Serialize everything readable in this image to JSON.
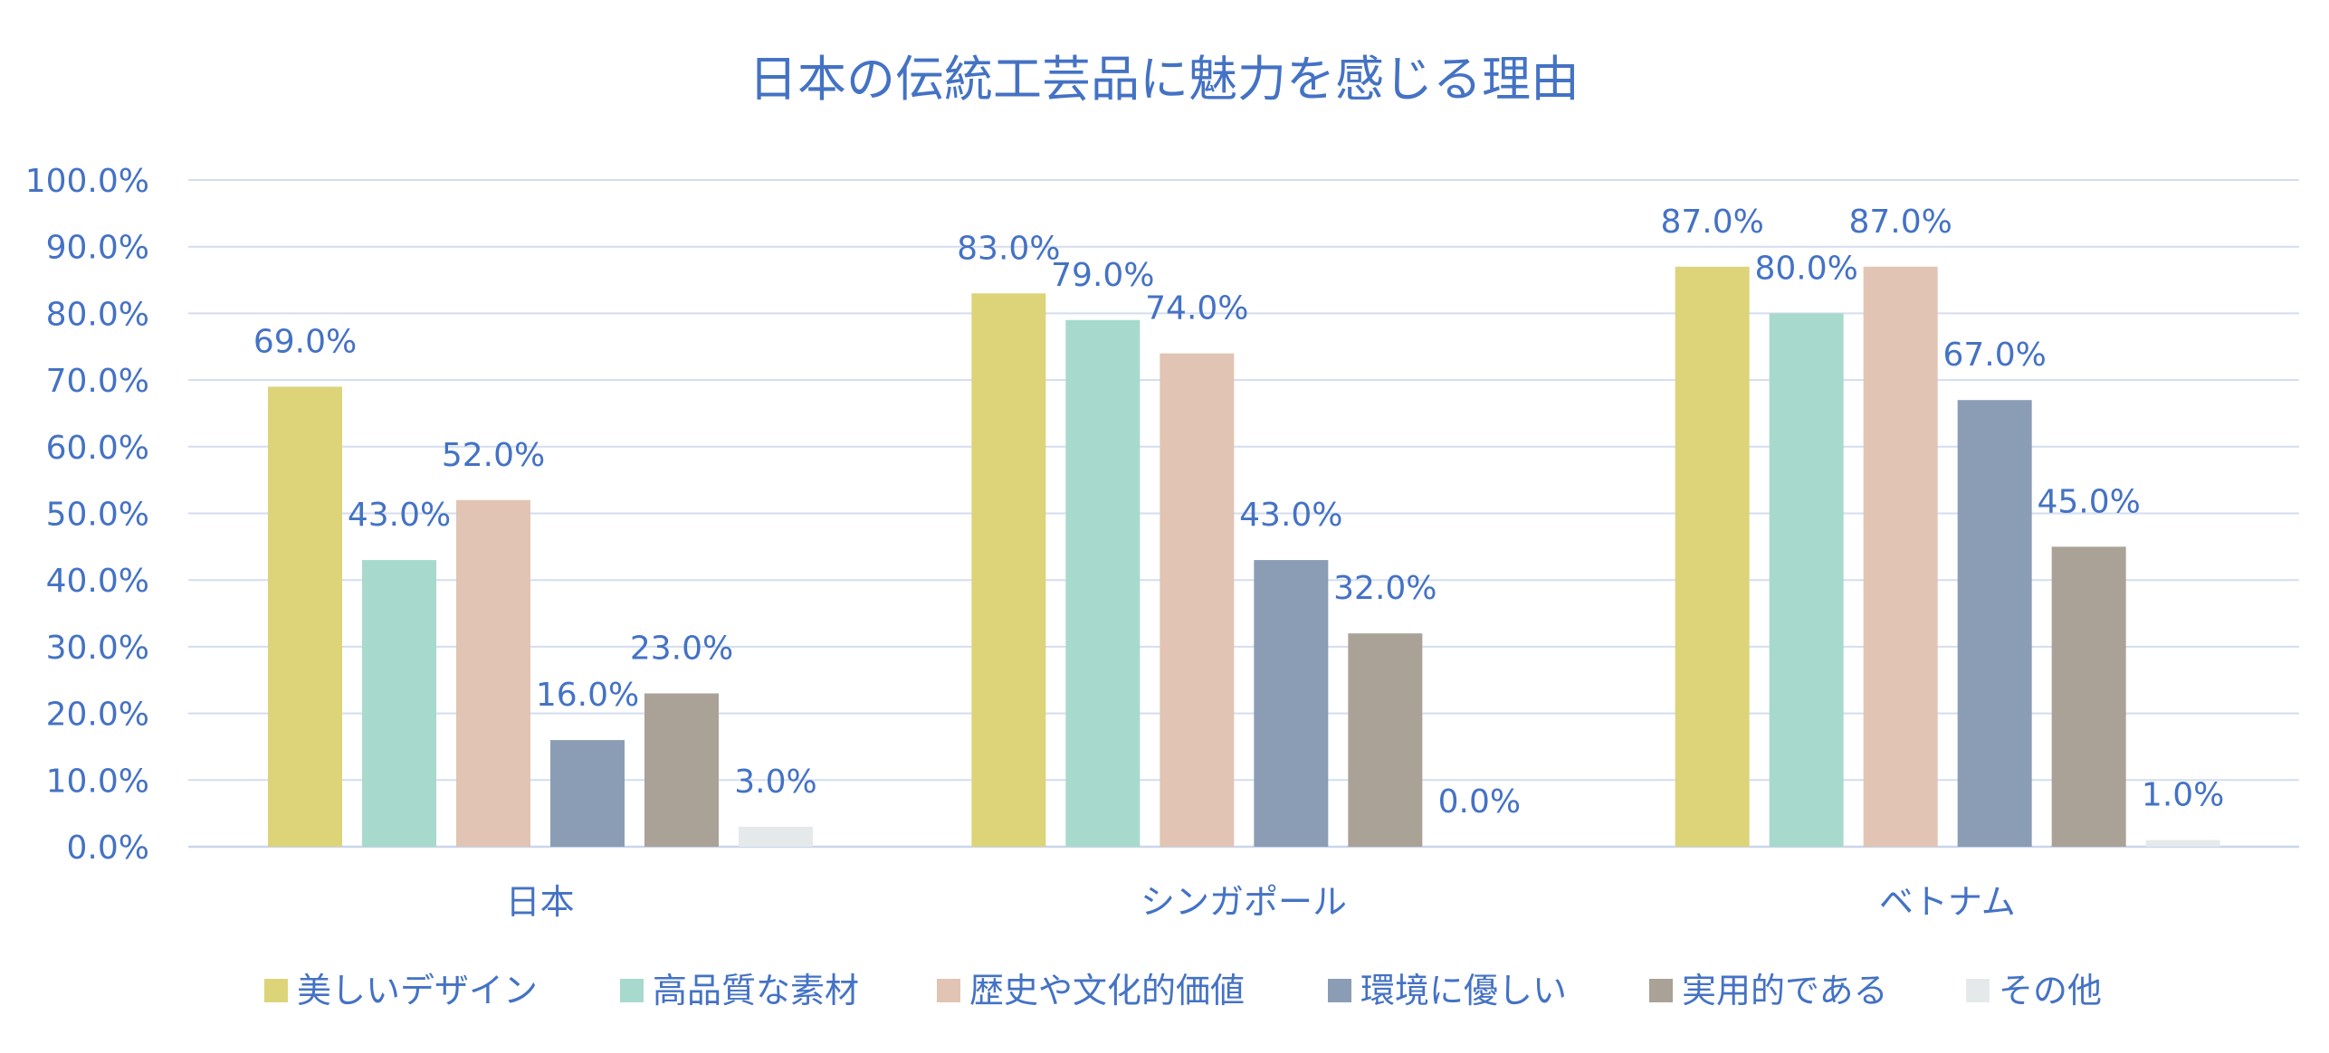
{
  "chart_data": {
    "type": "bar",
    "title": "日本の伝統工芸品に魅力を感じる理由",
    "xlabel": "",
    "ylabel": "",
    "categories": [
      "日本",
      "シンガポール",
      "ベトナム"
    ],
    "ylim": [
      0,
      100
    ],
    "yticks": [
      0,
      10,
      20,
      30,
      40,
      50,
      60,
      70,
      80,
      90,
      100
    ],
    "ytick_labels": [
      "0.0%",
      "10.0%",
      "20.0%",
      "30.0%",
      "40.0%",
      "50.0%",
      "60.0%",
      "70.0%",
      "80.0%",
      "90.0%",
      "100.0%"
    ],
    "value_format": "percent_1dp",
    "grid": true,
    "legend_position": "bottom",
    "series": [
      {
        "name": "美しいデザイン",
        "color": "#DDD47A",
        "values": [
          69,
          83,
          87
        ],
        "labels": [
          "69.0%",
          "83.0%",
          "87.0%"
        ]
      },
      {
        "name": "高品質な素材",
        "color": "#A7D9CD",
        "values": [
          43,
          79,
          80
        ],
        "labels": [
          "43.0%",
          "79.0%",
          "80.0%"
        ]
      },
      {
        "name": "歴史や文化的価値",
        "color": "#E1C4B4",
        "values": [
          52,
          74,
          87
        ],
        "labels": [
          "52.0%",
          "74.0%",
          "87.0%"
        ]
      },
      {
        "name": "環境に優しい",
        "color": "#8B9DB5",
        "values": [
          16,
          43,
          67
        ],
        "labels": [
          "16.0%",
          "43.0%",
          "67.0%"
        ]
      },
      {
        "name": "実用的である",
        "color": "#AAA197",
        "values": [
          23,
          32,
          45
        ],
        "labels": [
          "23.0%",
          "32.0%",
          "45.0%"
        ]
      },
      {
        "name": "その他",
        "color": "#E6E9EA",
        "values": [
          3,
          0,
          1
        ],
        "labels": [
          "3.0%",
          "0.0%",
          "1.0%"
        ]
      }
    ]
  }
}
